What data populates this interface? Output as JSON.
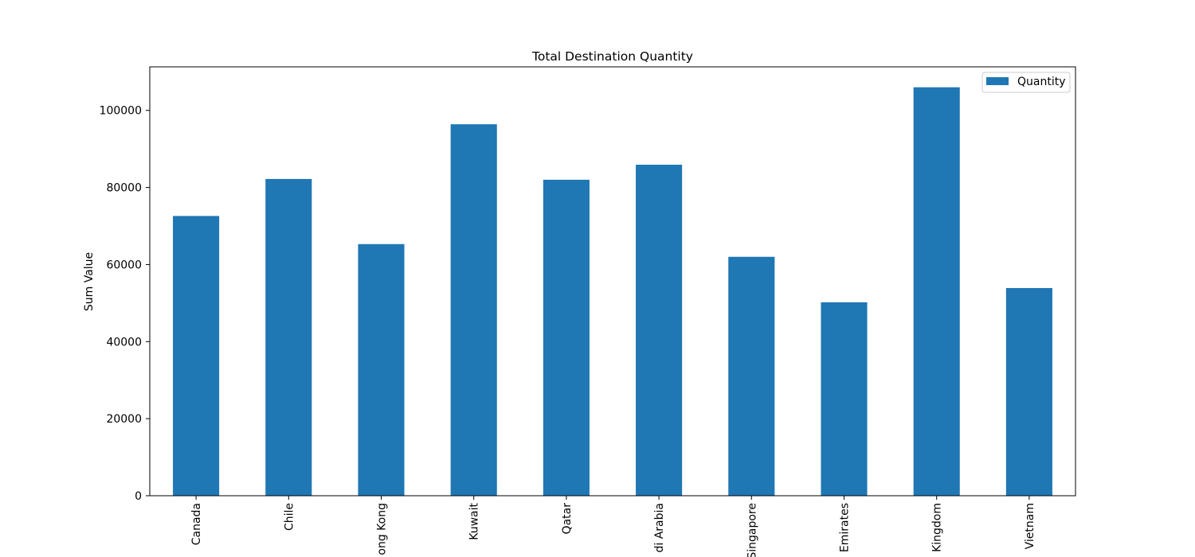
{
  "chart_data": {
    "type": "bar",
    "title": "Total Destination Quantity",
    "xlabel": "",
    "ylabel": "Sum Value",
    "categories": [
      "Canada",
      "Chile",
      "ong Kong",
      "Kuwait",
      "Qatar",
      "di Arabia",
      "Singapore",
      "Emirates",
      "Kingdom",
      "Vietnam"
    ],
    "series": [
      {
        "name": "Quantity",
        "values": [
          72600,
          82200,
          65300,
          96400,
          82000,
          85900,
          62000,
          50200,
          106000,
          53900
        ]
      }
    ],
    "ylim": [
      0,
      111300
    ],
    "yticks": [
      0,
      20000,
      40000,
      60000,
      80000,
      100000
    ],
    "ytick_labels": [
      "0",
      "20000",
      "40000",
      "60000",
      "80000",
      "100000"
    ],
    "legend": "top-right",
    "grid": false,
    "colors": {
      "bar": "#1f77b4"
    }
  }
}
